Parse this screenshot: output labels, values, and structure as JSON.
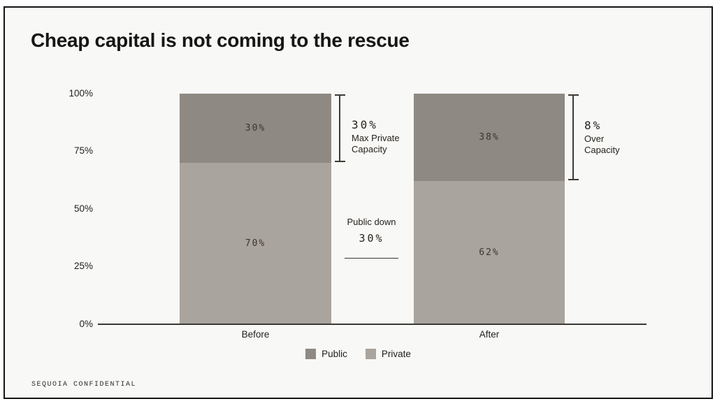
{
  "slide": {
    "title": "Cheap capital is not coming to the rescue",
    "footer": "SEQUOIA CONFIDENTIAL",
    "background": "#f8f8f6"
  },
  "chart_data": {
    "type": "bar",
    "stacked": true,
    "title": "Cheap capital is not coming to the rescue",
    "categories": [
      "Before",
      "After"
    ],
    "series": [
      {
        "name": "Public",
        "color": "#8e8983",
        "values": [
          30,
          38
        ],
        "labels": [
          "30%",
          "38%"
        ]
      },
      {
        "name": "Private",
        "color": "#a9a49d",
        "values": [
          70,
          62
        ],
        "labels": [
          "70%",
          "62%"
        ]
      }
    ],
    "y_axis": {
      "ticks": [
        "100%",
        "75%",
        "50%",
        "25%",
        "0%"
      ],
      "min": 0,
      "max": 100
    },
    "grid": false,
    "legend": {
      "position": "bottom-center",
      "items": [
        {
          "label": "Public",
          "color": "#8e8983"
        },
        {
          "label": "Private",
          "color": "#a9a49d"
        }
      ]
    },
    "annotations": [
      {
        "id": "before-bracket",
        "value": "30%",
        "label_lines": [
          "Max Private",
          "Capacity"
        ]
      },
      {
        "id": "after-bracket",
        "value": "8%",
        "label_lines": [
          "Over",
          "Capacity"
        ]
      },
      {
        "id": "public-down",
        "text": "Public down",
        "value": "30%"
      }
    ]
  }
}
